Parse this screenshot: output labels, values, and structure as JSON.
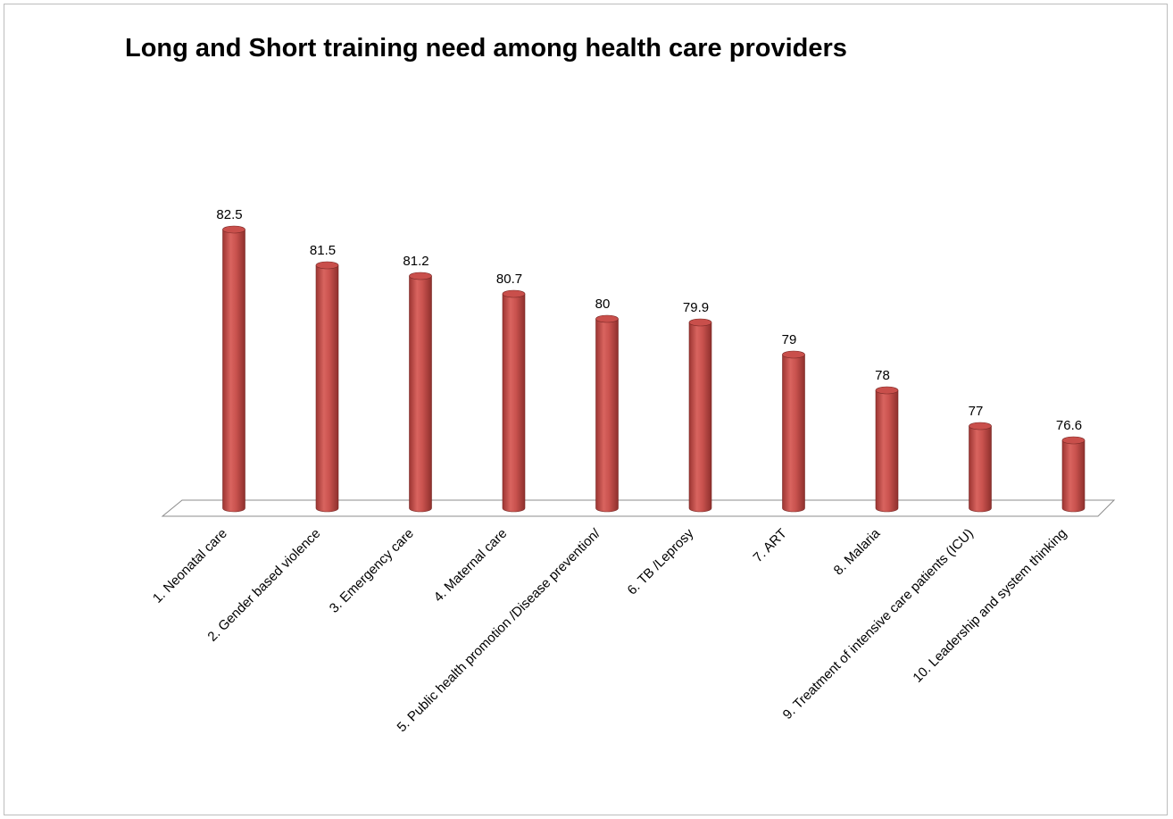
{
  "chart_data": {
    "type": "bar",
    "title": "Long and Short training need among health care providers",
    "xlabel": "",
    "ylabel": "",
    "categories": [
      "1.    Neonatal care",
      "2.    Gender based violence",
      "3.    Emergency care",
      "4.    Maternal care",
      "5.    Public health promotion /Disease prevention/",
      "6.    TB /Leprosy",
      "7.    ART",
      "8.    Malaria",
      "9.    Treatment of intensive care patients (ICU)",
      "10.  Leadership and system thinking"
    ],
    "values": [
      82.5,
      81.5,
      81.2,
      80.7,
      80,
      79.9,
      79,
      78,
      77,
      76.6
    ],
    "value_labels": [
      "82.5",
      "81.5",
      "81.2",
      "80.7",
      "80",
      "79.9",
      "79",
      "78",
      "77",
      "76.6"
    ],
    "bar_color": "#c0504d",
    "grid": false,
    "legend": "none"
  }
}
